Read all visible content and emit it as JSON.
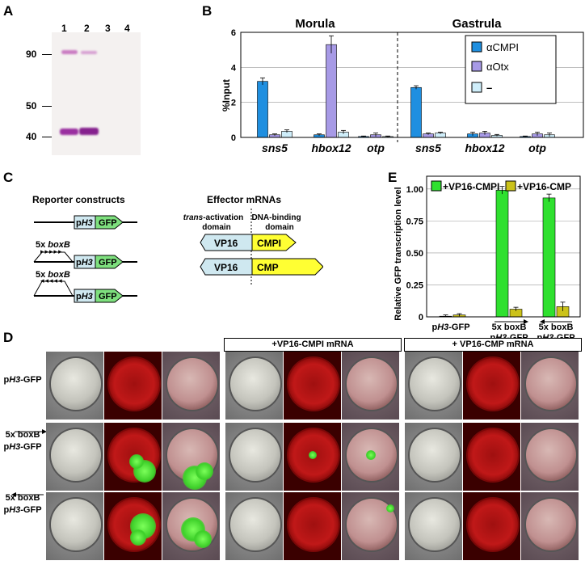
{
  "panels": {
    "a": "A",
    "b": "B",
    "c": "C",
    "d": "D",
    "e": "E"
  },
  "panelA": {
    "lanes": [
      "1",
      "2",
      "3",
      "4"
    ],
    "markers": [
      "90",
      "50",
      "40"
    ]
  },
  "panelB": {
    "stage_morula": "Morula",
    "stage_gastrula": "Gastrula",
    "ylabel": "%Input",
    "legend": [
      "αCMPI",
      "αOtx",
      "–"
    ],
    "colors": [
      "#1f8fe0",
      "#a79ae6",
      "#cfeefa"
    ]
  },
  "panelC": {
    "reporter_title": "Reporter constructs",
    "effector_title": "Effector mRNAs",
    "promoter_p": "p",
    "promoter_h3": "H3",
    "gfp": "GFP",
    "boxb_prefix": "5x ",
    "boxb_italic": "boxB",
    "trans_italic": "trans",
    "trans_rest": "-activation",
    "domain": "domain",
    "dna_binding": "DNA-binding",
    "vp16": "VP16",
    "cmpi": "CMPI",
    "cmp": "CMP"
  },
  "panelD": {
    "header_cmpi": "+VP16-CMPI mRNA",
    "header_cmp": "+ VP16-CMP mRNA",
    "row1_p": "p",
    "row1_h3": "H3",
    "row1_rest": "-GFP",
    "boxb": "5x boxB"
  },
  "panelE": {
    "ylabel": "Relative GFP transcription level",
    "legend_cmpi": "+VP16-CMPI",
    "legend_cmp": "+VP16-CMP",
    "color_cmpi": "#2fe02f",
    "color_cmp": "#cbc21a",
    "yticks": [
      "1.00",
      "0.75",
      "0.50",
      "0.25",
      "0"
    ],
    "grp1_p": "p",
    "grp1_h3": "H3",
    "grp1_rest": "-GFP",
    "grp_boxb": "5x boxB"
  },
  "chart_data": [
    {
      "type": "bar",
      "ylabel": "%Input",
      "ylim": [
        0,
        6
      ],
      "yticks": [
        0,
        2,
        4,
        6
      ],
      "groups": [
        "Morula",
        "Gastrula"
      ],
      "categories": [
        "sns5",
        "hbox12",
        "otp",
        "sns5",
        "hbox12",
        "otp"
      ],
      "series": [
        {
          "name": "αCMPI",
          "values": [
            3.2,
            0.15,
            0.05,
            2.85,
            0.2,
            0.05
          ],
          "errors": [
            0.2,
            0.05,
            0.03,
            0.1,
            0.1,
            0.03
          ]
        },
        {
          "name": "αOtx",
          "values": [
            0.15,
            5.3,
            0.15,
            0.2,
            0.25,
            0.2
          ],
          "errors": [
            0.05,
            0.5,
            0.1,
            0.05,
            0.1,
            0.1
          ]
        },
        {
          "name": "–",
          "values": [
            0.35,
            0.3,
            0.05,
            0.25,
            0.12,
            0.15
          ],
          "errors": [
            0.08,
            0.1,
            0.03,
            0.05,
            0.05,
            0.1
          ]
        }
      ],
      "legend": "top-right",
      "grid": true
    },
    {
      "type": "bar",
      "ylabel": "Relative GFP transcription level",
      "ylim": [
        0,
        1.1
      ],
      "yticks": [
        0,
        0.25,
        0.5,
        0.75,
        1.0
      ],
      "categories": [
        "pH3-GFP",
        "5x boxB pH3-GFP (forward)",
        "5x boxB pH3-GFP (reverse)"
      ],
      "series": [
        {
          "name": "+VP16-CMPI",
          "values": [
            0.005,
            0.99,
            0.93
          ],
          "errors": [
            0.01,
            0.03,
            0.03
          ]
        },
        {
          "name": "+VP16-CMP",
          "values": [
            0.015,
            0.06,
            0.08
          ],
          "errors": [
            0.01,
            0.015,
            0.035
          ]
        }
      ],
      "legend": "top",
      "grid": true
    }
  ]
}
